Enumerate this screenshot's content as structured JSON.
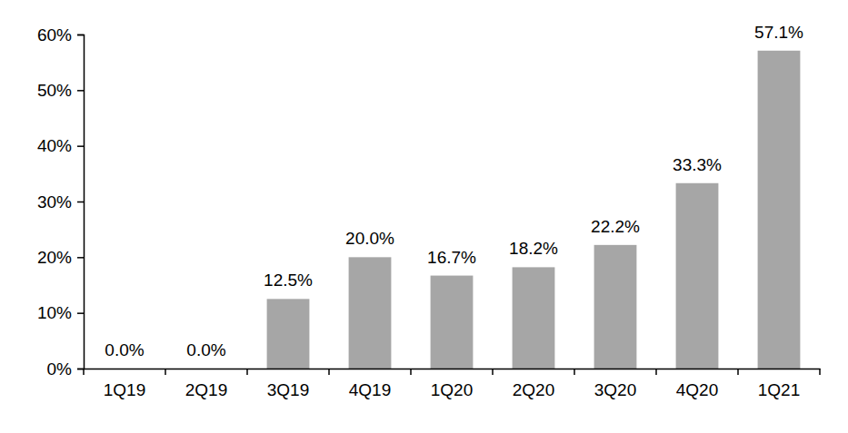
{
  "chart_data": {
    "type": "bar",
    "categories": [
      "1Q19",
      "2Q19",
      "3Q19",
      "4Q19",
      "1Q20",
      "2Q20",
      "3Q20",
      "4Q20",
      "1Q21"
    ],
    "values": [
      0,
      0,
      12.5,
      20,
      16.7,
      18.2,
      22.2,
      33.3,
      57.1
    ],
    "value_labels": [
      "0.0%",
      "0.0%",
      "12.5%",
      "20.0%",
      "16.7%",
      "18.2%",
      "22.2%",
      "33.3%",
      "57.1%"
    ],
    "color": "#a6a6a6",
    "ylim": [
      0,
      60
    ],
    "yticks": [
      {
        "value": 0,
        "label": "0%"
      },
      {
        "value": 10,
        "label": "10%"
      },
      {
        "value": 20,
        "label": "20%"
      },
      {
        "value": 30,
        "label": "30%"
      },
      {
        "value": 40,
        "label": "40%"
      },
      {
        "value": 50,
        "label": "50%"
      },
      {
        "value": 60,
        "label": "60%"
      }
    ],
    "grid": false,
    "data_labels": true
  }
}
